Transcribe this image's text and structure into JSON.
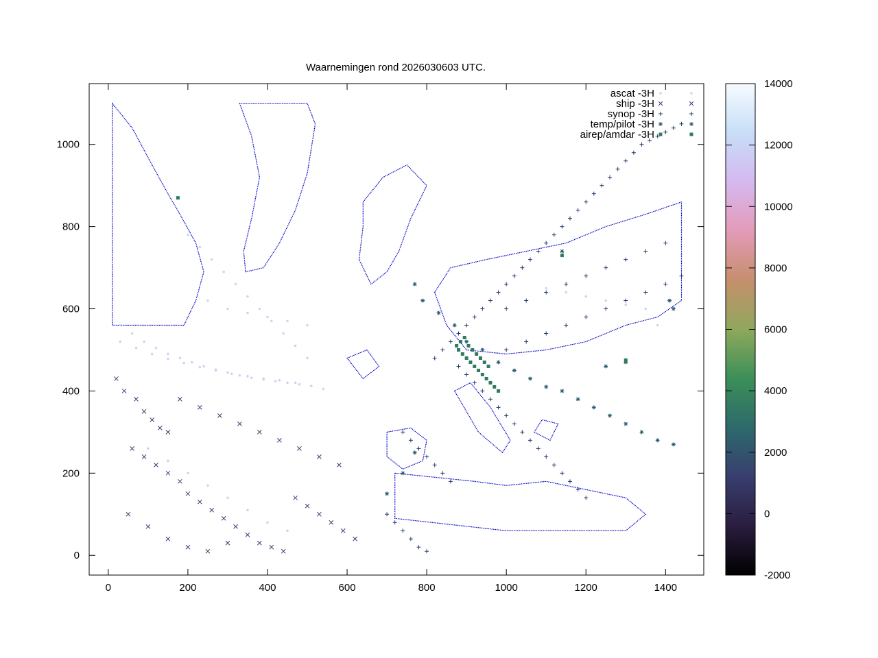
{
  "chart_data": {
    "type": "scatter",
    "title": "Waarnemingen rond 2026030603 UTC.",
    "xlabel": "",
    "ylabel": "",
    "xlim": [
      -48,
      1496
    ],
    "ylim": [
      -48,
      1148
    ],
    "x_ticks": [
      "0",
      "200",
      "400",
      "600",
      "800",
      "1000",
      "1200",
      "1400"
    ],
    "y_ticks": [
      "0",
      "200",
      "400",
      "600",
      "800",
      "1000"
    ],
    "legend": {
      "placement": "top-right",
      "entries": [
        {
          "label": "ascat -3H",
          "marker": "dot"
        },
        {
          "label": "ship -3H",
          "marker": "cross"
        },
        {
          "label": "synop -3H",
          "marker": "plus"
        },
        {
          "label": "temp/pilot -3H",
          "marker": "star"
        },
        {
          "label": "airep/amdar -3H",
          "marker": "square"
        }
      ]
    },
    "colorbar": {
      "range": [
        -2000,
        14000
      ],
      "ticks": [
        "14000",
        "12000",
        "10000",
        "8000",
        "6000",
        "4000",
        "2000",
        "0",
        "-2000"
      ],
      "palette": [
        "#000000",
        "#2a1d3f",
        "#383e6e",
        "#2d6a6c",
        "#3c8f58",
        "#8fa85c",
        "#c68f6d",
        "#e39ab8",
        "#d5b9f0",
        "#c7def7",
        "#f6fbff"
      ]
    },
    "grid": false,
    "coastline_color": "#0000cc",
    "series": [
      {
        "name": "ascat -3H",
        "color": "#c9d6f2",
        "points": [
          [
            30,
            560
          ],
          [
            60,
            540
          ],
          [
            90,
            520
          ],
          [
            120,
            505
          ],
          [
            150,
            490
          ],
          [
            180,
            480
          ],
          [
            210,
            470
          ],
          [
            240,
            460
          ],
          [
            270,
            452
          ],
          [
            300,
            445
          ],
          [
            330,
            438
          ],
          [
            360,
            432
          ],
          [
            390,
            428
          ],
          [
            420,
            424
          ],
          [
            450,
            420
          ],
          [
            480,
            416
          ],
          [
            30,
            520
          ],
          [
            70,
            505
          ],
          [
            110,
            490
          ],
          [
            150,
            478
          ],
          [
            190,
            468
          ],
          [
            230,
            458
          ],
          [
            270,
            450
          ],
          [
            310,
            442
          ],
          [
            350,
            436
          ],
          [
            390,
            430
          ],
          [
            430,
            426
          ],
          [
            470,
            420
          ],
          [
            510,
            412
          ],
          [
            540,
            405
          ],
          [
            200,
            780
          ],
          [
            230,
            750
          ],
          [
            260,
            720
          ],
          [
            290,
            690
          ],
          [
            320,
            660
          ],
          [
            350,
            630
          ],
          [
            380,
            600
          ],
          [
            410,
            570
          ],
          [
            440,
            540
          ],
          [
            470,
            510
          ],
          [
            500,
            480
          ],
          [
            250,
            620
          ],
          [
            300,
            600
          ],
          [
            350,
            590
          ],
          [
            400,
            580
          ],
          [
            450,
            570
          ],
          [
            500,
            560
          ],
          [
            100,
            260
          ],
          [
            150,
            230
          ],
          [
            200,
            200
          ],
          [
            250,
            170
          ],
          [
            300,
            140
          ],
          [
            350,
            110
          ],
          [
            400,
            80
          ],
          [
            450,
            60
          ],
          [
            1100,
            650
          ],
          [
            1150,
            640
          ],
          [
            1200,
            630
          ],
          [
            1250,
            620
          ],
          [
            1300,
            610
          ],
          [
            1350,
            600
          ],
          [
            1380,
            560
          ]
        ]
      },
      {
        "name": "ship -3H",
        "color": "#3a3f73",
        "points": [
          [
            20,
            430
          ],
          [
            40,
            400
          ],
          [
            70,
            380
          ],
          [
            90,
            350
          ],
          [
            110,
            330
          ],
          [
            130,
            310
          ],
          [
            150,
            300
          ],
          [
            60,
            260
          ],
          [
            90,
            240
          ],
          [
            120,
            220
          ],
          [
            150,
            200
          ],
          [
            180,
            180
          ],
          [
            200,
            150
          ],
          [
            230,
            130
          ],
          [
            260,
            110
          ],
          [
            290,
            90
          ],
          [
            320,
            70
          ],
          [
            350,
            50
          ],
          [
            380,
            30
          ],
          [
            410,
            20
          ],
          [
            440,
            10
          ],
          [
            470,
            140
          ],
          [
            500,
            120
          ],
          [
            530,
            100
          ],
          [
            560,
            80
          ],
          [
            590,
            60
          ],
          [
            620,
            40
          ],
          [
            180,
            380
          ],
          [
            230,
            360
          ],
          [
            280,
            340
          ],
          [
            330,
            320
          ],
          [
            380,
            300
          ],
          [
            430,
            280
          ],
          [
            480,
            260
          ],
          [
            530,
            240
          ],
          [
            580,
            220
          ],
          [
            50,
            100
          ],
          [
            100,
            70
          ],
          [
            150,
            40
          ],
          [
            200,
            20
          ],
          [
            250,
            10
          ],
          [
            300,
            30
          ]
        ]
      },
      {
        "name": "synop -3H",
        "color": "#1e3a6b",
        "points": [
          [
            820,
            480
          ],
          [
            840,
            500
          ],
          [
            860,
            520
          ],
          [
            880,
            540
          ],
          [
            900,
            560
          ],
          [
            920,
            580
          ],
          [
            940,
            600
          ],
          [
            960,
            620
          ],
          [
            980,
            640
          ],
          [
            1000,
            660
          ],
          [
            1020,
            680
          ],
          [
            1040,
            700
          ],
          [
            1060,
            720
          ],
          [
            1080,
            740
          ],
          [
            1100,
            760
          ],
          [
            1120,
            780
          ],
          [
            1140,
            800
          ],
          [
            1160,
            820
          ],
          [
            1180,
            840
          ],
          [
            1200,
            860
          ],
          [
            1220,
            880
          ],
          [
            1240,
            900
          ],
          [
            1260,
            920
          ],
          [
            1280,
            940
          ],
          [
            1300,
            960
          ],
          [
            1320,
            980
          ],
          [
            1340,
            1000
          ],
          [
            1360,
            1010
          ],
          [
            1380,
            1020
          ],
          [
            1400,
            1030
          ],
          [
            1420,
            1040
          ],
          [
            1440,
            1050
          ],
          [
            880,
            460
          ],
          [
            900,
            440
          ],
          [
            920,
            420
          ],
          [
            940,
            400
          ],
          [
            960,
            380
          ],
          [
            980,
            360
          ],
          [
            1000,
            340
          ],
          [
            1020,
            320
          ],
          [
            1040,
            300
          ],
          [
            1060,
            280
          ],
          [
            1080,
            260
          ],
          [
            1100,
            240
          ],
          [
            1120,
            220
          ],
          [
            1140,
            200
          ],
          [
            1160,
            180
          ],
          [
            1180,
            160
          ],
          [
            1200,
            140
          ],
          [
            740,
            300
          ],
          [
            760,
            280
          ],
          [
            780,
            260
          ],
          [
            800,
            240
          ],
          [
            820,
            220
          ],
          [
            840,
            200
          ],
          [
            860,
            180
          ],
          [
            700,
            100
          ],
          [
            720,
            80
          ],
          [
            740,
            60
          ],
          [
            760,
            40
          ],
          [
            780,
            20
          ],
          [
            800,
            10
          ],
          [
            1000,
            600
          ],
          [
            1050,
            620
          ],
          [
            1100,
            640
          ],
          [
            1150,
            660
          ],
          [
            1200,
            680
          ],
          [
            1250,
            700
          ],
          [
            1300,
            720
          ],
          [
            1350,
            740
          ],
          [
            1400,
            760
          ],
          [
            1000,
            500
          ],
          [
            1050,
            520
          ],
          [
            1100,
            540
          ],
          [
            1150,
            560
          ],
          [
            1200,
            580
          ],
          [
            1250,
            600
          ],
          [
            1300,
            620
          ],
          [
            1350,
            640
          ],
          [
            1400,
            660
          ],
          [
            1440,
            680
          ]
        ]
      },
      {
        "name": "temp/pilot -3H",
        "color": "#2b5d70",
        "points": [
          [
            770,
            660
          ],
          [
            790,
            620
          ],
          [
            830,
            590
          ],
          [
            870,
            560
          ],
          [
            900,
            520
          ],
          [
            940,
            500
          ],
          [
            980,
            470
          ],
          [
            1020,
            450
          ],
          [
            1060,
            430
          ],
          [
            1100,
            410
          ],
          [
            1140,
            400
          ],
          [
            1180,
            380
          ],
          [
            1220,
            360
          ],
          [
            1260,
            340
          ],
          [
            1300,
            320
          ],
          [
            1340,
            300
          ],
          [
            1380,
            280
          ],
          [
            1420,
            270
          ],
          [
            1420,
            600
          ],
          [
            1410,
            620
          ],
          [
            1300,
            470
          ],
          [
            1250,
            460
          ],
          [
            1140,
            740
          ],
          [
            770,
            250
          ],
          [
            740,
            200
          ],
          [
            700,
            150
          ]
        ]
      },
      {
        "name": "airep/amdar -3H",
        "color": "#2f7a60",
        "points": [
          [
            900,
            480
          ],
          [
            910,
            470
          ],
          [
            920,
            460
          ],
          [
            930,
            450
          ],
          [
            940,
            440
          ],
          [
            950,
            430
          ],
          [
            960,
            420
          ],
          [
            970,
            410
          ],
          [
            980,
            400
          ],
          [
            890,
            490
          ],
          [
            880,
            500
          ],
          [
            875,
            510
          ],
          [
            885,
            520
          ],
          [
            895,
            530
          ],
          [
            905,
            510
          ],
          [
            915,
            500
          ],
          [
            925,
            490
          ],
          [
            935,
            480
          ],
          [
            945,
            470
          ],
          [
            955,
            460
          ],
          [
            1300,
            475
          ],
          [
            1140,
            730
          ],
          [
            175,
            870
          ]
        ]
      }
    ]
  }
}
